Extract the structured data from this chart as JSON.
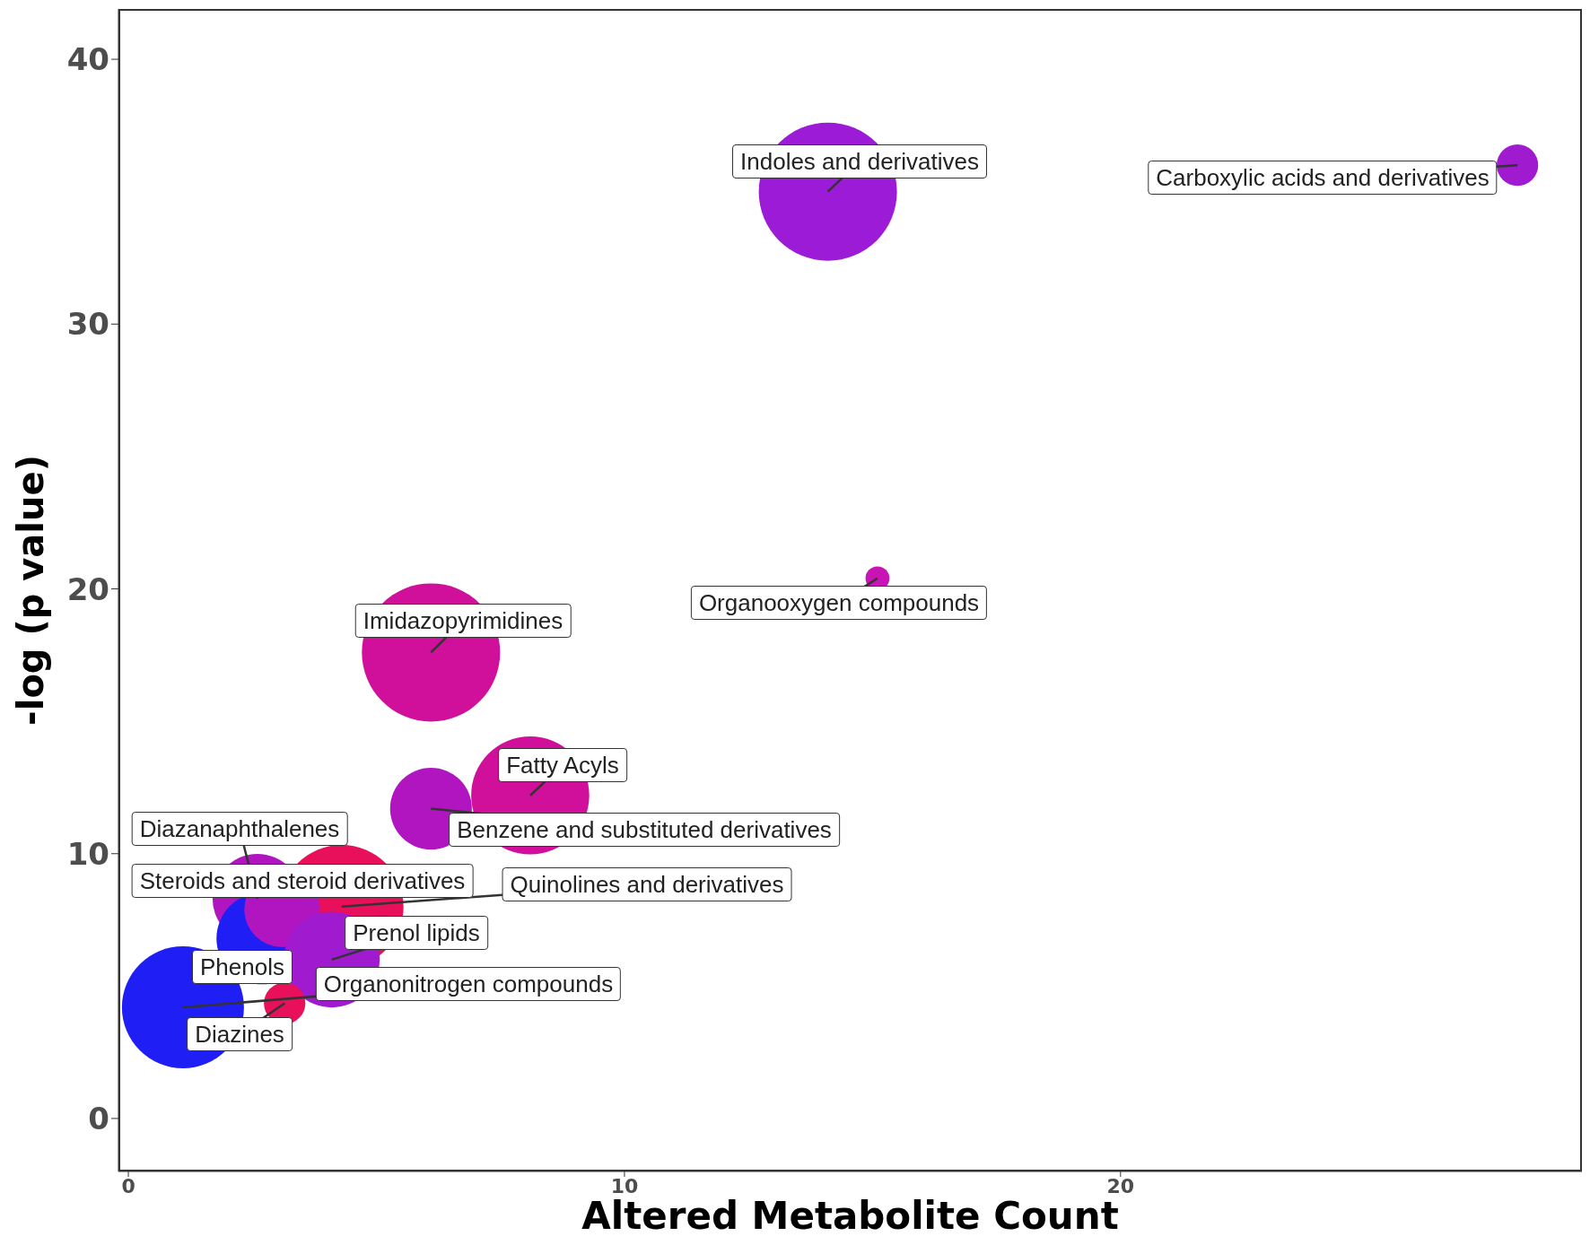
{
  "chart_data": {
    "type": "bubble",
    "xlabel": "Altered Metabolite Count",
    "ylabel": "-log (p value)",
    "xlim": [
      -0.2,
      29.3
    ],
    "xticks": [
      0,
      10,
      20
    ],
    "ylim": [
      -2,
      41.9
    ],
    "yticks": [
      0,
      10,
      20,
      30,
      40
    ],
    "series": [
      {
        "name": "Indoles and derivatives",
        "color": "#9b1bd6",
        "x": [
          14.1
        ],
        "values": [
          35.0
        ],
        "sizes": [
          1
        ]
      },
      {
        "name": "Carboxylic acids and derivatives",
        "color": "#a01ad0",
        "x": [
          28.0
        ],
        "values": [
          36.0
        ],
        "sizes": [
          0.09
        ]
      },
      {
        "name": "Organooxygen compounds",
        "color": "#c814b4",
        "x": [
          15.1
        ],
        "values": [
          20.4
        ],
        "sizes": [
          0.03
        ]
      },
      {
        "name": "Imidazopyrimidines",
        "color": "#d0109a",
        "x": [
          6.1
        ],
        "values": [
          17.6
        ],
        "sizes": [
          1
        ]
      },
      {
        "name": "Fatty Acyls",
        "color": "#d0109a",
        "x": [
          8.1
        ],
        "values": [
          12.2
        ],
        "sizes": [
          0.73
        ]
      },
      {
        "name": "Benzene and substituted derivatives",
        "color": "#b015c0",
        "x": [
          6.1
        ],
        "values": [
          11.7
        ],
        "sizes": [
          0.35
        ]
      },
      {
        "name": "Diazanaphthalenes",
        "color": "#b015c0",
        "x": [
          2.6
        ],
        "values": [
          8.3
        ],
        "sizes": [
          0.42
        ]
      },
      {
        "name": "Steroids and steroid derivatives",
        "color": "#b015c0",
        "x": [
          3.1
        ],
        "values": [
          7.9
        ],
        "sizes": [
          0.3
        ]
      },
      {
        "name": "Quinolines and derivatives",
        "color": "#e8105a",
        "x": [
          4.3
        ],
        "values": [
          8.0
        ],
        "sizes": [
          0.8
        ]
      },
      {
        "name": "Prenol lipids",
        "color": "#a01ad0",
        "x": [
          4.1
        ],
        "values": [
          6.0
        ],
        "sizes": [
          0.48
        ]
      },
      {
        "name": "Phenols",
        "color": "#1f1ff5",
        "x": [
          2.7
        ],
        "values": [
          6.8
        ],
        "sizes": [
          0.44
        ]
      },
      {
        "name": "Organonitrogen compounds",
        "color": "#1f1ff5",
        "x": [
          1.1
        ],
        "values": [
          4.2
        ],
        "sizes": [
          0.78
        ]
      },
      {
        "name": "Diazines",
        "color": "#e8105a",
        "x": [
          3.15
        ],
        "values": [
          4.35
        ],
        "sizes": [
          0.09
        ]
      }
    ]
  }
}
